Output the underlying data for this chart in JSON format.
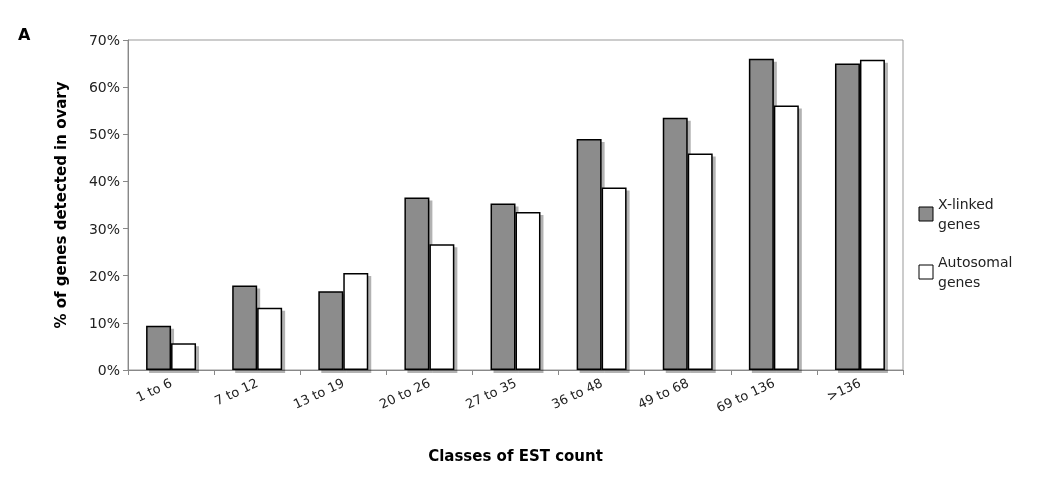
{
  "chart_data": {
    "type": "bar",
    "xlabel": "Classes of EST count",
    "ylabel": "% of genes detected in ovary",
    "annotations": [
      "A"
    ],
    "categories": [
      "1 to 6",
      "7 to 12",
      "13 to 19",
      "20 to 26",
      "27 to 35",
      "36 to 48",
      "49 to 68",
      "69 to 136",
      ">136"
    ],
    "series": [
      {
        "name": "X-linked genes",
        "color": "#8c8c8c",
        "values": [
          9.4,
          17.9,
          16.7,
          36.6,
          35.3,
          49.0,
          53.5,
          66.0,
          65.0
        ]
      },
      {
        "name": "Autosomal genes",
        "color": "#ffffff",
        "values": [
          5.7,
          13.2,
          20.6,
          26.7,
          33.5,
          38.7,
          45.9,
          56.1,
          65.8
        ]
      }
    ],
    "ylim": [
      0,
      70
    ],
    "yticks": [
      {
        "value": 0,
        "label": "0%"
      },
      {
        "value": 10,
        "label": "10%"
      },
      {
        "value": 20,
        "label": "20%"
      },
      {
        "value": 30,
        "label": "30%"
      },
      {
        "value": 40,
        "label": "40%"
      },
      {
        "value": 50,
        "label": "50%"
      },
      {
        "value": 60,
        "label": "60%"
      },
      {
        "value": 70,
        "label": "70%"
      }
    ],
    "grid": false,
    "legend": "right"
  }
}
